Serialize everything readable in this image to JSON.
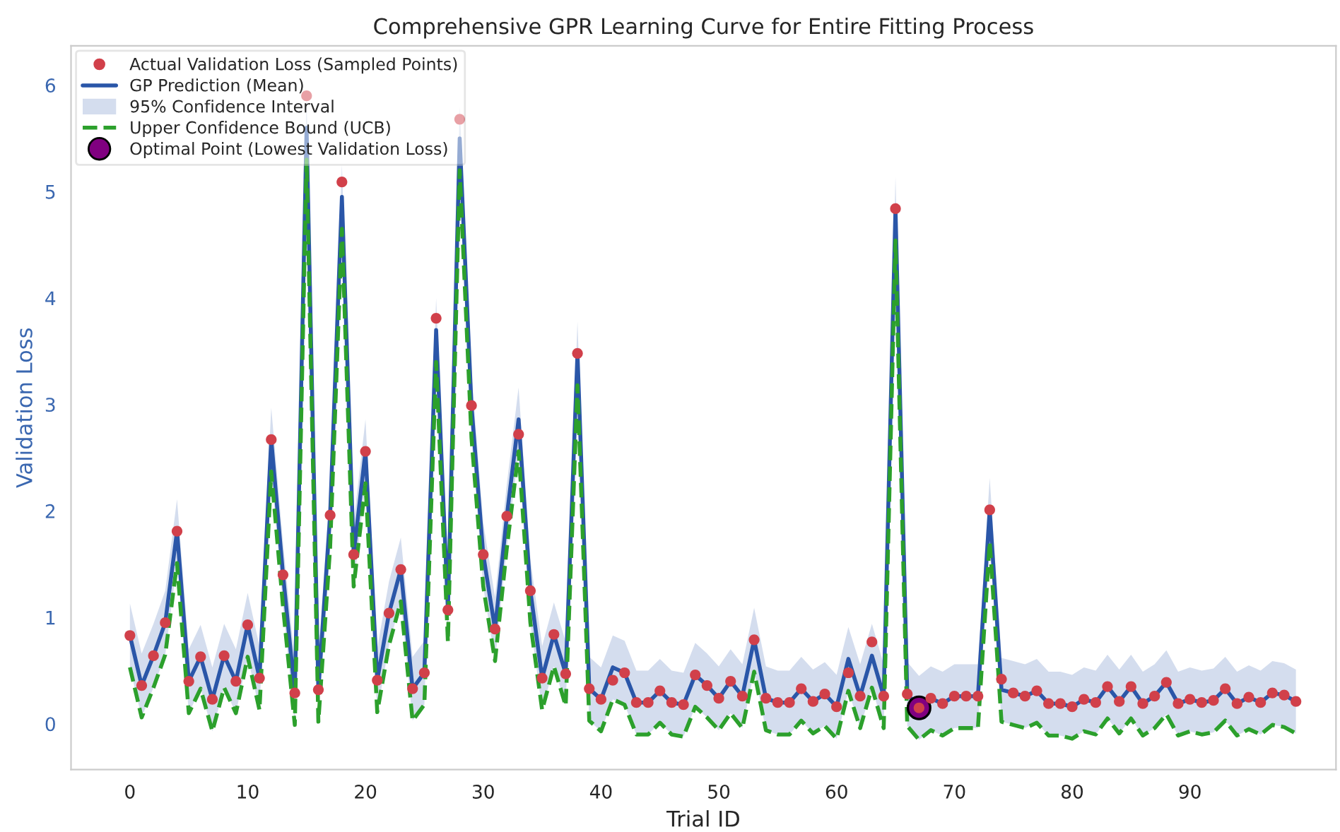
{
  "chart_data": {
    "type": "line",
    "title": "Comprehensive GPR Learning Curve for Entire Fitting Process",
    "xlabel": "Trial ID",
    "ylabel": "Validation Loss",
    "x": [
      0,
      1,
      2,
      3,
      4,
      5,
      6,
      7,
      8,
      9,
      10,
      11,
      12,
      13,
      14,
      15,
      16,
      17,
      18,
      19,
      20,
      21,
      22,
      23,
      24,
      25,
      26,
      27,
      28,
      29,
      30,
      31,
      32,
      33,
      34,
      35,
      36,
      37,
      38,
      39,
      40,
      41,
      42,
      43,
      44,
      45,
      46,
      47,
      48,
      49,
      50,
      51,
      52,
      53,
      54,
      55,
      56,
      57,
      58,
      59,
      60,
      61,
      62,
      63,
      64,
      65,
      66,
      67,
      68,
      69,
      70,
      71,
      72,
      73,
      74,
      75,
      76,
      77,
      78,
      79,
      80,
      81,
      82,
      83,
      84,
      85,
      86,
      87,
      88,
      89,
      90,
      91,
      92,
      93,
      94,
      95,
      96,
      97,
      98,
      99
    ],
    "xlim": [
      -5,
      102.4
    ],
    "ylim": [
      -0.43,
      6.37
    ],
    "xticks": [
      0,
      10,
      20,
      30,
      40,
      50,
      60,
      70,
      80,
      90
    ],
    "yticks": [
      0,
      1,
      2,
      3,
      4,
      5,
      6
    ],
    "grid": false,
    "legend": "top left",
    "annotations": [
      "95% Confidence Interval"
    ],
    "series": [
      {
        "type": "scatter",
        "name": "Actual Validation Loss (Sampled Points)",
        "color": "#d1404a",
        "marker": "circle",
        "values": [
          0.83,
          0.36,
          0.64,
          0.95,
          1.81,
          0.4,
          0.63,
          0.23,
          0.64,
          0.4,
          0.93,
          0.43,
          2.67,
          1.4,
          0.29,
          5.9,
          0.32,
          1.96,
          5.09,
          1.59,
          2.56,
          0.41,
          1.04,
          1.45,
          0.33,
          0.48,
          3.81,
          1.07,
          5.68,
          2.99,
          1.59,
          0.89,
          1.95,
          2.72,
          1.25,
          0.43,
          0.84,
          0.47,
          3.48,
          0.33,
          0.23,
          0.41,
          0.48,
          0.2,
          0.2,
          0.31,
          0.2,
          0.18,
          0.46,
          0.36,
          0.24,
          0.4,
          0.26,
          0.79,
          0.24,
          0.2,
          0.2,
          0.33,
          0.21,
          0.28,
          0.16,
          0.48,
          0.26,
          0.77,
          0.26,
          4.84,
          0.28,
          0.15,
          0.24,
          0.19,
          0.26,
          0.26,
          0.26,
          2.01,
          0.42,
          0.29,
          0.26,
          0.31,
          0.19,
          0.19,
          0.16,
          0.23,
          0.2,
          0.35,
          0.21,
          0.35,
          0.19,
          0.26,
          0.39,
          0.19,
          0.23,
          0.2,
          0.22,
          0.33,
          0.19,
          0.25,
          0.2,
          0.29,
          0.27,
          0.21
        ]
      },
      {
        "name": "GP Prediction (Mean)",
        "color": "#2a56a8",
        "line_style": "solid",
        "values": [
          0.83,
          0.36,
          0.64,
          0.95,
          1.81,
          0.4,
          0.63,
          0.23,
          0.64,
          0.4,
          0.93,
          0.43,
          2.67,
          1.4,
          0.29,
          5.6,
          0.32,
          1.96,
          4.95,
          1.59,
          2.56,
          0.41,
          1.04,
          1.45,
          0.33,
          0.48,
          3.7,
          1.07,
          5.5,
          2.99,
          1.59,
          0.89,
          1.95,
          2.86,
          1.25,
          0.43,
          0.84,
          0.47,
          3.48,
          0.33,
          0.23,
          0.53,
          0.48,
          0.2,
          0.2,
          0.31,
          0.2,
          0.18,
          0.46,
          0.36,
          0.24,
          0.4,
          0.26,
          0.79,
          0.24,
          0.2,
          0.2,
          0.33,
          0.21,
          0.28,
          0.16,
          0.61,
          0.26,
          0.64,
          0.26,
          4.84,
          0.28,
          0.15,
          0.24,
          0.19,
          0.26,
          0.26,
          0.26,
          2.01,
          0.32,
          0.29,
          0.26,
          0.31,
          0.19,
          0.19,
          0.16,
          0.23,
          0.2,
          0.35,
          0.21,
          0.35,
          0.19,
          0.26,
          0.39,
          0.19,
          0.23,
          0.2,
          0.22,
          0.33,
          0.19,
          0.25,
          0.2,
          0.29,
          0.27,
          0.21
        ],
        "upper": [
          1.13,
          0.66,
          0.94,
          1.25,
          2.11,
          0.7,
          0.93,
          0.53,
          0.94,
          0.7,
          1.23,
          0.73,
          2.97,
          1.7,
          0.59,
          5.9,
          0.62,
          2.26,
          5.25,
          1.89,
          2.86,
          0.71,
          1.34,
          1.75,
          0.63,
          0.78,
          4.0,
          1.37,
          5.8,
          3.29,
          1.89,
          1.19,
          2.25,
          3.16,
          1.55,
          0.73,
          1.14,
          0.77,
          3.78,
          0.63,
          0.53,
          0.83,
          0.78,
          0.5,
          0.5,
          0.61,
          0.5,
          0.48,
          0.76,
          0.66,
          0.54,
          0.7,
          0.56,
          1.09,
          0.54,
          0.5,
          0.5,
          0.63,
          0.51,
          0.58,
          0.46,
          0.91,
          0.56,
          0.94,
          0.56,
          5.14,
          0.58,
          0.45,
          0.54,
          0.49,
          0.56,
          0.56,
          0.56,
          2.31,
          0.62,
          0.59,
          0.56,
          0.61,
          0.49,
          0.49,
          0.46,
          0.53,
          0.5,
          0.65,
          0.51,
          0.65,
          0.49,
          0.56,
          0.69,
          0.49,
          0.53,
          0.5,
          0.52,
          0.63,
          0.49,
          0.55,
          0.5,
          0.59,
          0.57,
          0.51
        ],
        "lower": [
          0.53,
          0.06,
          0.34,
          0.65,
          1.51,
          0.1,
          0.33,
          -0.07,
          0.34,
          0.1,
          0.63,
          0.13,
          2.37,
          1.1,
          -0.01,
          5.3,
          0.02,
          1.66,
          4.65,
          1.29,
          2.26,
          0.11,
          0.74,
          1.15,
          0.03,
          0.18,
          3.4,
          0.77,
          5.2,
          2.69,
          1.29,
          0.59,
          1.65,
          2.56,
          0.95,
          0.13,
          0.54,
          0.17,
          3.18,
          0.03,
          -0.07,
          0.23,
          0.18,
          -0.1,
          -0.1,
          0.01,
          -0.1,
          -0.12,
          0.16,
          0.06,
          -0.06,
          0.1,
          -0.04,
          0.49,
          -0.06,
          -0.1,
          -0.1,
          0.03,
          -0.09,
          -0.02,
          -0.14,
          0.31,
          -0.04,
          0.34,
          -0.04,
          4.54,
          -0.02,
          -0.15,
          -0.06,
          -0.11,
          -0.04,
          -0.04,
          -0.04,
          1.71,
          0.02,
          -0.01,
          -0.04,
          0.01,
          -0.11,
          -0.11,
          -0.14,
          -0.07,
          -0.1,
          0.05,
          -0.09,
          0.05,
          -0.11,
          -0.04,
          0.09,
          -0.11,
          -0.07,
          -0.1,
          -0.08,
          0.03,
          -0.11,
          -0.05,
          -0.1,
          -0.01,
          -0.03,
          -0.09
        ]
      },
      {
        "type": "line",
        "name": "Upper Confidence Bound (UCB)",
        "color": "#2ca02c",
        "line_style": "dashed",
        "values": [
          0.53,
          0.06,
          0.34,
          0.65,
          1.51,
          0.1,
          0.33,
          -0.07,
          0.34,
          0.1,
          0.63,
          0.13,
          2.37,
          1.1,
          -0.01,
          5.3,
          0.02,
          1.66,
          4.65,
          1.29,
          2.26,
          0.11,
          0.74,
          1.15,
          0.03,
          0.18,
          3.4,
          0.77,
          5.2,
          2.69,
          1.29,
          0.59,
          1.65,
          2.56,
          0.95,
          0.13,
          0.54,
          0.17,
          3.18,
          0.03,
          -0.07,
          0.23,
          0.18,
          -0.1,
          -0.1,
          0.01,
          -0.1,
          -0.12,
          0.16,
          0.06,
          -0.06,
          0.1,
          -0.04,
          0.49,
          -0.06,
          -0.1,
          -0.1,
          0.03,
          -0.09,
          -0.02,
          -0.14,
          0.31,
          -0.04,
          0.34,
          -0.04,
          4.54,
          -0.02,
          -0.15,
          -0.06,
          -0.11,
          -0.04,
          -0.04,
          -0.04,
          1.71,
          0.02,
          -0.01,
          -0.04,
          0.01,
          -0.11,
          -0.11,
          -0.14,
          -0.07,
          -0.1,
          0.05,
          -0.09,
          0.05,
          -0.11,
          -0.04,
          0.09,
          -0.11,
          -0.07,
          -0.1,
          -0.08,
          0.03,
          -0.11,
          -0.05,
          -0.1,
          -0.01,
          -0.03,
          -0.09
        ]
      },
      {
        "type": "scatter",
        "name": "Optimal Point (Lowest Validation Loss)",
        "color": "#800080",
        "marker": "circle",
        "x": [
          67
        ],
        "values": [
          0.15
        ]
      }
    ]
  }
}
